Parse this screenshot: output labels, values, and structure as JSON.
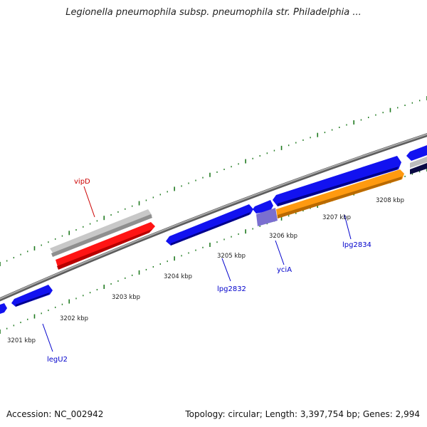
{
  "title": "Legionella pneumophila subsp. pneumophila str. Philadelphia ...",
  "footer": {
    "accession": "Accession: NC_002942",
    "summary": "Topology: circular; Length: 3,397,754 bp; Genes: 2,994"
  },
  "colors": {
    "forward_gene": "#0b0bee",
    "highlight_gene": "#ff1010",
    "gray_gene": "#bdbdbd",
    "orange_gene": "#ff9a10",
    "purple_gene": "#7a6fd0",
    "backbone": "#8a8a8a",
    "ticks": "#1f7a1f",
    "label_forward": "#0000cc",
    "label_highlight": "#cc0000"
  },
  "ticks": [
    "3201 kbp",
    "3202 kbp",
    "3203 kbp",
    "3204 kbp",
    "3205 kbp",
    "3206 kbp",
    "3207 kbp",
    "3208 kbp"
  ],
  "gene_labels": [
    {
      "text": "vipD",
      "color": "label_highlight"
    },
    {
      "text": "lpg2832",
      "color": "label_forward"
    },
    {
      "text": "yciA",
      "color": "label_forward"
    },
    {
      "text": "lpg2834",
      "color": "label_forward"
    },
    {
      "text": "legU2",
      "color": "label_forward"
    }
  ]
}
